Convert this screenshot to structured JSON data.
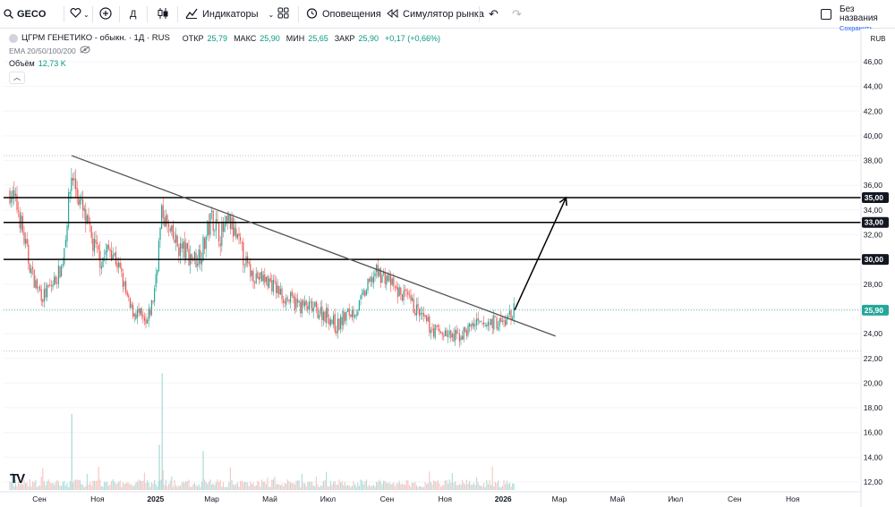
{
  "toolbar": {
    "symbol": "GECO",
    "interval": "Д",
    "indicators_label": "Индикаторы",
    "alerts_label": "Оповещения",
    "replay_label": "Симулятор рынка",
    "layout_name": "Без названия",
    "save_label": "Сохранить"
  },
  "legend": {
    "title": "ЦГРМ ГЕНЕТИКО - обыкн. · 1Д · RUS",
    "open_label": "ОТКР",
    "open_value": "25,79",
    "high_label": "МАКС",
    "high_value": "25,90",
    "low_label": "МИН",
    "low_value": "25,65",
    "close_label": "ЗАКР",
    "close_value": "25,90",
    "change_value": "+0,17 (+0,66%)",
    "ema_label": "EMA 20/50/100/200",
    "volume_label": "Объём",
    "volume_value": "12,73 K"
  },
  "colors": {
    "up": "#26a69a",
    "down": "#ef5350",
    "up_volume": "#b2dfdb",
    "down_volume": "#f8c8c6",
    "level_line": "#000000",
    "trend_line": "#555555",
    "last_price_badge": "#26a69a"
  },
  "chart_data": {
    "type": "candlestick",
    "currency": "RUB",
    "ylim": [
      11.5,
      47.5
    ],
    "y_ticks": [
      "46,00",
      "44,00",
      "42,00",
      "40,00",
      "38,00",
      "36,00",
      "34,00",
      "32,00",
      "30,00",
      "28,00",
      "26,00",
      "24,00",
      "22,00",
      "20,00",
      "18,00",
      "16,00",
      "14,00",
      "12,00"
    ],
    "x_ticks": [
      "Сен",
      "Ноя",
      "2025",
      "Мар",
      "Май",
      "Июл",
      "Сен",
      "Ноя",
      "2026",
      "Мар",
      "Май",
      "Июл",
      "Сен",
      "Ноя"
    ],
    "last_price": "25,90",
    "horizontal_levels": [
      "35,00",
      "33,00",
      "30,00"
    ],
    "dotted_levels": [
      38.4,
      22.6
    ],
    "trendline": {
      "start": [
        "2024-10-05",
        38.4
      ],
      "end": [
        "2026-02-25",
        23.8
      ]
    },
    "projection_arrow": {
      "start": [
        "2026-01-13",
        25.9
      ],
      "end": [
        "2026-03-08",
        35.0
      ]
    },
    "price_path": [
      [
        "2024-08-01",
        35.5
      ],
      [
        "2024-08-10",
        34
      ],
      [
        "2024-08-20",
        30
      ],
      [
        "2024-08-28",
        28
      ],
      [
        "2024-09-05",
        27
      ],
      [
        "2024-09-15",
        28
      ],
      [
        "2024-09-25",
        29.5
      ],
      [
        "2024-10-05",
        37
      ],
      [
        "2024-10-12",
        35
      ],
      [
        "2024-10-20",
        33
      ],
      [
        "2024-10-28",
        31
      ],
      [
        "2024-11-05",
        30
      ],
      [
        "2024-11-15",
        31
      ],
      [
        "2024-11-25",
        29
      ],
      [
        "2024-12-05",
        26
      ],
      [
        "2024-12-15",
        25.5
      ],
      [
        "2024-12-22",
        24.5
      ],
      [
        "2024-12-30",
        27
      ],
      [
        "2025-01-08",
        34
      ],
      [
        "2025-01-16",
        32
      ],
      [
        "2025-01-25",
        31
      ],
      [
        "2025-02-03",
        30.5
      ],
      [
        "2025-02-12",
        30
      ],
      [
        "2025-02-20",
        31
      ],
      [
        "2025-03-01",
        33.5
      ],
      [
        "2025-03-10",
        32
      ],
      [
        "2025-03-20",
        33
      ],
      [
        "2025-03-30",
        31
      ],
      [
        "2025-04-10",
        29
      ],
      [
        "2025-04-20",
        28.5
      ],
      [
        "2025-05-01",
        28.2
      ],
      [
        "2025-05-15",
        27
      ],
      [
        "2025-06-01",
        26.3
      ],
      [
        "2025-06-15",
        26
      ],
      [
        "2025-07-01",
        25.5
      ],
      [
        "2025-07-10",
        24.5
      ],
      [
        "2025-07-20",
        25.5
      ],
      [
        "2025-08-01",
        26
      ],
      [
        "2025-08-10",
        27.5
      ],
      [
        "2025-08-20",
        29
      ],
      [
        "2025-09-01",
        28.5
      ],
      [
        "2025-09-10",
        27.5
      ],
      [
        "2025-09-20",
        27
      ],
      [
        "2025-10-01",
        26
      ],
      [
        "2025-10-10",
        25
      ],
      [
        "2025-10-20",
        24.3
      ],
      [
        "2025-11-01",
        24
      ],
      [
        "2025-11-10",
        23.6
      ],
      [
        "2025-11-20",
        24
      ],
      [
        "2025-12-01",
        24.8
      ],
      [
        "2025-12-10",
        24.5
      ],
      [
        "2025-12-20",
        25
      ],
      [
        "2026-01-01",
        24.8
      ],
      [
        "2026-01-13",
        25.9
      ]
    ],
    "volume_spikes": [
      [
        "2024-10-05",
        17.5
      ],
      [
        "2025-01-08",
        20.8
      ],
      [
        "2025-01-05",
        15
      ],
      [
        "2025-02-20",
        14.5
      ]
    ]
  }
}
